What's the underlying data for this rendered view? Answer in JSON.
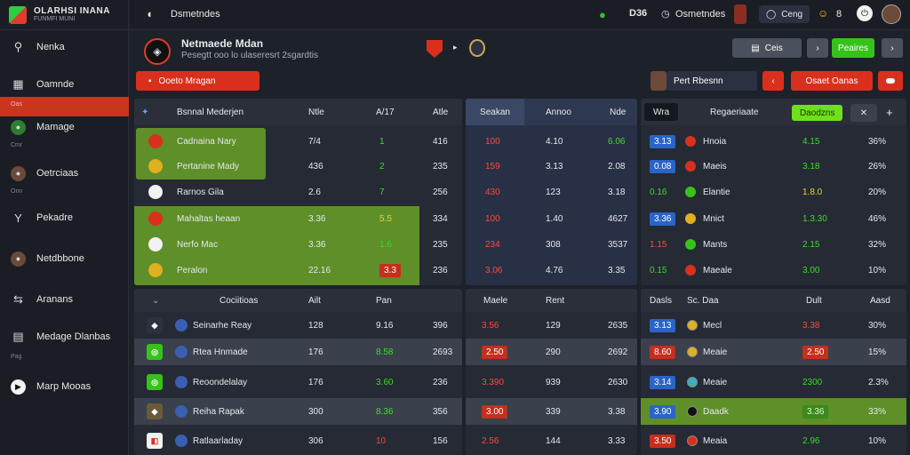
{
  "brand": {
    "title": "OLARHSI INANA",
    "subtitle": "FUNMFI MUNI"
  },
  "sidebar": {
    "items": [
      {
        "label": "Nenka",
        "icon": "search-icon",
        "glyph": "⚲"
      },
      {
        "label": "Oamnde",
        "icon": "calendar-icon",
        "glyph": "▦"
      },
      {
        "label": "Mamage",
        "icon": "club-badge-icon",
        "glyph": "◉"
      },
      {
        "label": "Oetrciaas",
        "icon": "avatar-icon",
        "glyph": "●"
      },
      {
        "label": "Pekadre",
        "icon": "shield-icon",
        "glyph": "Y"
      },
      {
        "label": "Netdbbone",
        "icon": "manager-avatar-icon",
        "glyph": "●"
      },
      {
        "label": "Aranans",
        "icon": "tactics-icon",
        "glyph": "⇆"
      },
      {
        "label": "Medage Dlanbas",
        "icon": "clipboard-icon",
        "glyph": "▤"
      },
      {
        "label": "Marp Mooas",
        "icon": "logo-icon",
        "glyph": "◐"
      }
    ],
    "captions": [
      "Oas",
      "Cmr",
      "Onn",
      "Pag"
    ]
  },
  "topbar": {
    "page_title": "Dsmetndes",
    "badge": "D36",
    "info": "Osmetndes",
    "pill": "Ceng",
    "count": "8"
  },
  "header": {
    "title": "Netmaede Mdan",
    "subtitle": "Pesegtt ooo lo ulaseresrt 2sgardtis",
    "compare_button": "Ceis",
    "action_button": "Peaires",
    "red_button": "Ooeto Mragan",
    "search_label": "Pert Rbesnn",
    "red_small_button": "Osaet Oanas"
  },
  "colors": {
    "accent_red": "#d9301e",
    "accent_green": "#37c21b",
    "panel": "#252a34",
    "highlight_green": "#5e8f28"
  },
  "top_left": {
    "headers": [
      "Bsnnal Mederjen",
      "Ntle",
      "A/17",
      "Atle"
    ],
    "rows": [
      {
        "name": "Cadnaina Nary",
        "c1": "7/4",
        "c2": "1",
        "c3": "416"
      },
      {
        "name": "Pertanine Mady",
        "c1": "436",
        "c2": "2",
        "c3": "235"
      },
      {
        "name": "Rarnos Gila",
        "c1": "2.6",
        "c2": "7",
        "c3": "256"
      },
      {
        "name": "Mahaltas heaan",
        "c1": "3.36",
        "c2": "5.5",
        "c3": "334"
      },
      {
        "name": "Nerfo Mac",
        "c1": "3.36",
        "c2": "1.6",
        "c3": "235"
      },
      {
        "name": "Peralon",
        "c1": "22.16",
        "c2": "3.3",
        "c3": "236"
      }
    ]
  },
  "top_mid": {
    "headers": [
      "Seakan",
      "Annoo",
      "Nde"
    ],
    "rows": [
      {
        "c1": "100",
        "c2": "4.10",
        "c3": "6.06"
      },
      {
        "c1": "159",
        "c2": "3.13",
        "c3": "2.08"
      },
      {
        "c1": "430",
        "c2": "123",
        "c3": "3.18"
      },
      {
        "c1": "100",
        "c2": "1.40",
        "c3": "4627"
      },
      {
        "c1": "234",
        "c2": "308",
        "c3": "3537"
      },
      {
        "c1": "3.06",
        "c2": "4.76",
        "c3": "3.35"
      }
    ]
  },
  "top_right": {
    "tab": "Wra",
    "headers": [
      "Regaeriaate"
    ],
    "pill": "Daodzns",
    "rows": [
      {
        "idx": "3.13",
        "name": "Hnoia",
        "val": "4.15",
        "pct": "36%"
      },
      {
        "idx": "0.08",
        "name": "Maeis",
        "val": "3.18",
        "pct": "26%"
      },
      {
        "idx": "0.16",
        "name": "Elantie",
        "val": "1.8.0",
        "pct": "20%"
      },
      {
        "idx": "3.36",
        "name": "Mnict",
        "val": "1.3.30",
        "pct": "46%"
      },
      {
        "idx": "1.15",
        "name": "Mants",
        "val": "2.15",
        "pct": "32%"
      },
      {
        "idx": "0.15",
        "name": "Maeale",
        "val": "3.00",
        "pct": "10%"
      }
    ]
  },
  "bottom_left": {
    "headers": [
      "Cociitioas",
      "Ailt",
      "Pan"
    ],
    "rows": [
      {
        "name": "Seinarhe Reay",
        "c1": "128",
        "c2": "9.16",
        "c3": "396"
      },
      {
        "name": "Rtea Hnmade",
        "c1": "176",
        "c2": "8.58",
        "c3": "2693"
      },
      {
        "name": "Reoondelalay",
        "c1": "176",
        "c2": "3.60",
        "c3": "236"
      },
      {
        "name": "Reiha Rapak",
        "c1": "300",
        "c2": "8.36",
        "c3": "356"
      },
      {
        "name": "Ratlaarladay",
        "c1": "306",
        "c2": "10",
        "c3": "156"
      }
    ]
  },
  "bottom_mid": {
    "headers": [
      "Maele",
      "Rent"
    ],
    "rows": [
      {
        "c1": "3.56",
        "c2": "129",
        "c3": "2635"
      },
      {
        "c1": "2.50",
        "c2": "290",
        "c3": "2692"
      },
      {
        "c1": "3.390",
        "c2": "939",
        "c3": "2630"
      },
      {
        "c1": "3.00",
        "c2": "339",
        "c3": "3.38"
      },
      {
        "c1": "2.56",
        "c2": "144",
        "c3": "3.33"
      }
    ]
  },
  "bottom_right": {
    "headers": [
      "Dasls",
      "Sc. Daa",
      "Dult",
      "Aasd"
    ],
    "rows": [
      {
        "idx": "3.13",
        "name": "Mecl",
        "val": "3.38",
        "pct": "30%"
      },
      {
        "idx": "8.60",
        "name": "Meaie",
        "val": "2.50",
        "pct": "15%"
      },
      {
        "idx": "3.14",
        "name": "Meaie",
        "val": "2300",
        "pct": "2.3%"
      },
      {
        "idx": "3.90",
        "name": "Daadk",
        "val": "3.36",
        "pct": "33%"
      },
      {
        "idx": "3.50",
        "name": "Meaia",
        "val": "2.96",
        "pct": "10%"
      }
    ]
  }
}
